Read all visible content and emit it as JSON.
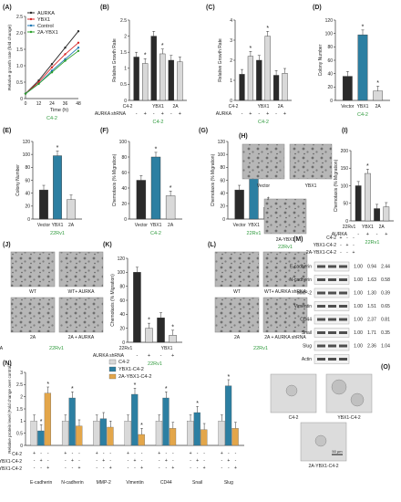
{
  "colors": {
    "dark": "#2a2a2a",
    "light": "#d9d9d9",
    "mid": "#9a9a9a",
    "teal": "#2c7fa2",
    "tan": "#e3a64a",
    "green_text": "#2e9a3c",
    "red_line": "#d62728",
    "blue_line": "#1f77b4",
    "green_line": "#2ca02c"
  },
  "chart_data": [
    {
      "panel": "(A)",
      "type": "line",
      "legend": [
        "AURKA",
        "YBX1",
        "Control",
        "2A-YBX1"
      ],
      "ylabel": "Relative growth rate (fold change)",
      "xlabel": "Time (h)",
      "x": [
        0,
        12,
        24,
        36,
        48
      ],
      "xticks": [
        "0",
        "12",
        "24",
        "36",
        "48"
      ],
      "yticks": [
        "0",
        "0.5",
        "1.0",
        "1.5",
        "2.0",
        "2.5"
      ],
      "ylim": [
        0,
        2.5
      ],
      "series": [
        {
          "name": "AURKA",
          "color": "#2a2a2a",
          "values": [
            0.15,
            0.55,
            1.05,
            1.55,
            2.05
          ]
        },
        {
          "name": "YBX1",
          "color": "#d62728",
          "values": [
            0.15,
            0.5,
            0.95,
            1.35,
            1.7
          ]
        },
        {
          "name": "Control",
          "color": "#1f77b4",
          "values": [
            0.15,
            0.45,
            0.85,
            1.2,
            1.55
          ]
        },
        {
          "name": "2A-YBX1",
          "color": "#2ca02c",
          "values": [
            0.15,
            0.45,
            0.8,
            1.15,
            1.45
          ]
        }
      ],
      "cell_label": "C4-2"
    },
    {
      "panel": "(B)",
      "type": "bar",
      "ylabel": "Relative Growth Rate",
      "yticks": [
        "0",
        "0.5",
        "1",
        "1.5",
        "2",
        "2.5"
      ],
      "ylim": [
        0,
        2.5
      ],
      "groups": [
        "C4-2",
        "YBX1",
        "2A"
      ],
      "values": [
        1.35,
        1.15,
        2.0,
        1.45,
        1.25,
        1.2
      ],
      "colors": [
        "dark",
        "light",
        "dark",
        "light",
        "dark",
        "light"
      ],
      "sig": [
        false,
        true,
        false,
        true,
        false,
        false
      ],
      "cond_label": "AURKA shRNA",
      "cond_signs": [
        "-",
        "+",
        "-",
        "+",
        "-",
        "+"
      ],
      "cell_label": "C4-2"
    },
    {
      "panel": "(C)",
      "type": "bar",
      "ylabel": "Relative Growth Rate",
      "yticks": [
        "0",
        "1",
        "2",
        "3",
        "4"
      ],
      "ylim": [
        0,
        4
      ],
      "groups": [
        "C4-2",
        "YBX1",
        "2A"
      ],
      "values": [
        1.3,
        2.2,
        2.0,
        3.2,
        1.25,
        1.35
      ],
      "colors": [
        "dark",
        "light",
        "dark",
        "light",
        "dark",
        "light"
      ],
      "sig": [
        false,
        true,
        false,
        true,
        false,
        false
      ],
      "cond_label": "AURKA",
      "cond_signs": [
        "-",
        "+",
        "-",
        "+",
        "-",
        "+"
      ],
      "cell_label": "C4-2"
    },
    {
      "panel": "(D)",
      "type": "bar",
      "ylabel": "Colony Number",
      "yticks": [
        "0",
        "20",
        "40",
        "60",
        "80",
        "100",
        "120"
      ],
      "ylim": [
        0,
        120
      ],
      "categories": [
        "Vector",
        "YBX1",
        "2A"
      ],
      "values": [
        36,
        98,
        14
      ],
      "colors": [
        "dark",
        "teal",
        "light"
      ],
      "sig": [
        false,
        true,
        true
      ],
      "group_label": "C4-2",
      "cell_label": "C4-2"
    },
    {
      "panel": "(E)",
      "type": "bar",
      "ylabel": "Colony Number",
      "yticks": [
        "0",
        "20",
        "40",
        "60",
        "80",
        "100",
        "120"
      ],
      "ylim": [
        0,
        120
      ],
      "categories": [
        "Vector",
        "YBX1",
        "2A"
      ],
      "values": [
        45,
        98,
        30
      ],
      "colors": [
        "dark",
        "teal",
        "light"
      ],
      "sig": [
        false,
        true,
        false
      ],
      "group_label": "22Rv1",
      "cell_label": "22Rv1"
    },
    {
      "panel": "(F)",
      "type": "bar",
      "ylabel": "Chemotaxis (% Migration)",
      "yticks": [
        "0",
        "20",
        "40",
        "60",
        "80",
        "100"
      ],
      "ylim": [
        0,
        100
      ],
      "categories": [
        "Vector",
        "YBX1",
        "2A"
      ],
      "values": [
        50,
        80,
        30
      ],
      "colors": [
        "dark",
        "teal",
        "light"
      ],
      "sig": [
        false,
        true,
        true
      ],
      "group_label": "C4-2",
      "cell_label": "C4-2"
    },
    {
      "panel": "(G)",
      "type": "bar",
      "ylabel": "Chemotaxis (% Migration)",
      "yticks": [
        "0",
        "20",
        "40",
        "60",
        "80",
        "100",
        "120"
      ],
      "ylim": [
        0,
        120
      ],
      "categories": [
        "Vector",
        "YBX1",
        "2A"
      ],
      "values": [
        45,
        98,
        18
      ],
      "colors": [
        "dark",
        "teal",
        "light"
      ],
      "sig": [
        false,
        true,
        true
      ],
      "group_label": "22Rv1",
      "cell_label": "22Rv1"
    },
    {
      "panel": "(I)",
      "type": "bar",
      "ylabel": "Chemotaxis (% Migration)",
      "yticks": [
        "0",
        "50",
        "100",
        "150",
        "200"
      ],
      "ylim": [
        0,
        200
      ],
      "groups": [
        "22Rv1",
        "YBX1",
        "2A"
      ],
      "values": [
        100,
        135,
        35,
        40
      ],
      "group_sizes": [
        1,
        1,
        2
      ],
      "colors": [
        "dark",
        "light",
        "dark",
        "light"
      ],
      "sig": [
        false,
        true,
        false,
        false
      ],
      "cond_label": "AURKA",
      "cond_signs": [
        "-",
        "+",
        "-",
        "+"
      ],
      "cell_label": "22Rv1"
    },
    {
      "panel": "(K)",
      "type": "bar",
      "ylabel": "Chemotaxis (% Migration)",
      "yticks": [
        "0",
        "20",
        "40",
        "60",
        "80",
        "100",
        "120"
      ],
      "ylim": [
        0,
        120
      ],
      "groups": [
        "22Rv1",
        "YBX1",
        "2A"
      ],
      "values": [
        100,
        20,
        35,
        10
      ],
      "colors": [
        "dark",
        "light",
        "dark",
        "light"
      ],
      "sig": [
        false,
        true,
        false,
        true
      ],
      "cond_label": "AURKA shRNA",
      "cond_signs": [
        "-",
        "+",
        "-",
        "+"
      ],
      "cell_label": "22Rv1"
    },
    {
      "panel": "(N)",
      "type": "bar",
      "ylabel": "Relative protein level (Fold change over control)",
      "yticks": [
        "0",
        "0.5",
        "1",
        "1.5",
        "2",
        "2.5",
        "3"
      ],
      "ylim": [
        0,
        3
      ],
      "legend": [
        "C4-2",
        "YBX1-C4-2",
        "2A-YBX1-C4-2"
      ],
      "categories": [
        "E-cadherin",
        "N-cadherin",
        "MMP-2",
        "Vimentin",
        "CD44",
        "Snail",
        "Slug"
      ],
      "series": [
        {
          "name": "C4-2",
          "values": [
            1,
            1,
            1,
            1,
            1,
            1,
            1
          ]
        },
        {
          "name": "YBX1-C4-2",
          "values": [
            0.6,
            1.95,
            1.1,
            2.1,
            1.95,
            1.35,
            2.45
          ]
        },
        {
          "name": "2A-YBX1-C4-2",
          "values": [
            2.15,
            0.8,
            0.75,
            0.45,
            0.7,
            0.65,
            0.7
          ]
        }
      ],
      "sig": [
        [
          false,
          true,
          true
        ],
        [
          false,
          true,
          false
        ],
        [
          false,
          false,
          false
        ],
        [
          false,
          true,
          true
        ],
        [
          false,
          true,
          false
        ],
        [
          false,
          true,
          false
        ],
        [
          false,
          true,
          false
        ]
      ],
      "cond_rows": [
        "C4-2",
        "YBX1-C4-2",
        "2A-YBX1-C4-2"
      ],
      "cond_signs": [
        [
          "+",
          "-",
          "-"
        ],
        [
          "-",
          "+",
          "-"
        ],
        [
          "-",
          "-",
          "+"
        ]
      ]
    }
  ],
  "images": {
    "H": {
      "panel": "(H)",
      "labels": [
        "Vector",
        "YBX1",
        "2A-YBX1"
      ],
      "cell_label": "22Rv1"
    },
    "J": {
      "panel": "(J)",
      "labels": [
        "WT",
        "WT+ AURKA",
        "2A",
        "2A + AURKA"
      ],
      "cell_label": "22Rv1"
    },
    "L": {
      "panel": "(L)",
      "labels": [
        "WT",
        "WT+ AURKA shRNA",
        "2A",
        "2A + AURKA shRNA"
      ],
      "cell_label": "22Rv1"
    },
    "O": {
      "panel": "(O)",
      "labels": [
        "C4-2",
        "YBX1-C4-2",
        "2A-YBX1-C4-2"
      ],
      "scale": "50 µm"
    }
  },
  "western": {
    "panel": "(M)",
    "header_rows": [
      "C4-2",
      "YBX1-C4-2",
      "2A-YBX1-C4-2"
    ],
    "header_signs": [
      [
        "+",
        "-",
        "-"
      ],
      [
        "-",
        "+",
        "-"
      ],
      [
        "-",
        "-",
        "+"
      ]
    ],
    "bands": [
      {
        "name": "E-cadherin",
        "values": [
          "1.00",
          "0.94",
          "2.44"
        ]
      },
      {
        "name": "N-cadherin",
        "values": [
          "1.00",
          "1.63",
          "0.58"
        ]
      },
      {
        "name": "MMP-2",
        "values": [
          "1.00",
          "1.30",
          "0.39"
        ]
      },
      {
        "name": "Vimentin",
        "values": [
          "1.00",
          "1.51",
          "0.65"
        ]
      },
      {
        "name": "CD44",
        "values": [
          "1.00",
          "2.37",
          "0.81"
        ]
      },
      {
        "name": "Snail",
        "values": [
          "1.00",
          "1.71",
          "0.35"
        ]
      },
      {
        "name": "Slug",
        "values": [
          "1.00",
          "2.36",
          "1.04"
        ]
      },
      {
        "name": "Actin",
        "values": []
      }
    ]
  }
}
